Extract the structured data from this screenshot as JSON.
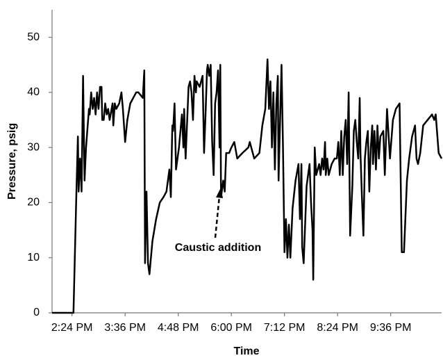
{
  "chart_data": {
    "type": "line",
    "x_label": "Time",
    "y_label": "Pressure, psig",
    "annotation": "Caustic addition",
    "color": "#000000",
    "x": [
      "1:57 PM",
      "2:26 PM",
      "2:30 PM",
      "2:32 PM",
      "2:33 PM",
      "2:35 PM",
      "2:37 PM",
      "2:39 PM",
      "2:41 PM",
      "2:43 PM",
      "2:47 PM",
      "2:48 PM",
      "2:50 PM",
      "2:52 PM",
      "2:54 PM",
      "2:56 PM",
      "2:58 PM",
      "3:00 PM",
      "3:02 PM",
      "3:04 PM",
      "3:05 PM",
      "3:07 PM",
      "3:09 PM",
      "3:11 PM",
      "3:13 PM",
      "3:15 PM",
      "3:19 PM",
      "3:20 PM",
      "3:22 PM",
      "3:24 PM",
      "3:28 PM",
      "3:31 PM",
      "3:33 PM",
      "3:36 PM",
      "3:39 PM",
      "3:43 PM",
      "3:51 PM",
      "3:54 PM",
      "4:00 PM",
      "4:02 PM",
      "4:03 PM",
      "4:05 PM",
      "4:07 PM",
      "4:09 PM",
      "4:13 PM",
      "4:18 PM",
      "4:23 PM",
      "4:28 PM",
      "4:32 PM",
      "4:36 PM",
      "4:38 PM",
      "4:40 PM",
      "4:41 PM",
      "4:43 PM",
      "4:45 PM",
      "4:49 PM",
      "4:53 PM",
      "4:55 PM",
      "4:56 PM",
      "4:58 PM",
      "5:02 PM",
      "5:04 PM",
      "5:06 PM",
      "5:08 PM",
      "5:10 PM",
      "5:12 PM",
      "5:13 PM",
      "5:17 PM",
      "5:21 PM",
      "5:23 PM",
      "5:25 PM",
      "5:27 PM",
      "5:28 PM",
      "5:30 PM",
      "5:32 PM",
      "5:34 PM",
      "5:36 PM",
      "5:38 PM",
      "5:40 PM",
      "5:42 PM",
      "5:44 PM",
      "5:45 PM",
      "5:46 PM",
      "5:47 PM",
      "5:49 PM",
      "5:51 PM",
      "5:53 PM",
      "5:57 PM",
      "6:00 PM",
      "6:04 PM",
      "6:08 PM",
      "6:15 PM",
      "6:23 PM",
      "6:25 PM",
      "6:31 PM",
      "6:38 PM",
      "6:42 PM",
      "6:46 PM",
      "6:49 PM",
      "6:51 PM",
      "6:53 PM",
      "6:55 PM",
      "6:57 PM",
      "6:59 PM",
      "7:01 PM",
      "7:03 PM",
      "7:04 PM",
      "7:08 PM",
      "7:10 PM",
      "7:12 PM",
      "7:14 PM",
      "7:16 PM",
      "7:18 PM",
      "7:20 PM",
      "7:23 PM",
      "7:27 PM",
      "7:31 PM",
      "7:33 PM",
      "7:35 PM",
      "7:36 PM",
      "7:38 PM",
      "7:42 PM",
      "7:46 PM",
      "7:48 PM",
      "7:50 PM",
      "7:51 PM",
      "7:53 PM",
      "7:55 PM",
      "7:59 PM",
      "8:01 PM",
      "8:03 PM",
      "8:05 PM",
      "8:07 PM",
      "8:08 PM",
      "8:10 PM",
      "8:12 PM",
      "8:16 PM",
      "8:20 PM",
      "8:23 PM",
      "8:25 PM",
      "8:27 PM",
      "8:29 PM",
      "8:31 PM",
      "8:33 PM",
      "8:35 PM",
      "8:37 PM",
      "8:39 PM",
      "8:41 PM",
      "8:44 PM",
      "8:46 PM",
      "8:48 PM",
      "8:50 PM",
      "8:52 PM",
      "8:54 PM",
      "8:55 PM",
      "8:57 PM",
      "8:59 PM",
      "9:01 PM",
      "9:03 PM",
      "9:05 PM",
      "9:07 PM",
      "9:09 PM",
      "9:11 PM",
      "9:12 PM",
      "9:14 PM",
      "9:16 PM",
      "9:18 PM",
      "9:20 PM",
      "9:22 PM",
      "9:26 PM",
      "9:28 PM",
      "9:31 PM",
      "9:35 PM",
      "9:39 PM",
      "9:43 PM",
      "9:48 PM",
      "9:51 PM",
      "9:54 PM",
      "9:58 PM",
      "10:01 PM",
      "10:05 PM",
      "10:09 PM",
      "10:11 PM",
      "10:13 PM",
      "10:16 PM",
      "10:20 PM",
      "10:26 PM",
      "10:32 PM",
      "10:35 PM",
      "10:37 PM",
      "10:41 PM",
      "10:45 PM"
    ],
    "values": [
      0,
      0,
      22,
      32,
      22,
      28,
      22,
      43,
      24,
      30,
      37,
      36,
      40,
      37,
      39,
      36,
      40,
      37,
      41,
      41,
      35,
      35,
      38,
      36,
      37,
      35,
      38,
      34,
      38,
      37,
      38,
      40,
      37,
      31,
      35,
      38,
      40,
      40,
      39,
      44,
      9,
      22,
      9,
      7,
      13,
      17,
      20,
      21,
      22,
      26,
      21,
      34,
      33,
      38,
      26,
      30,
      36,
      30,
      37,
      28,
      41,
      42,
      40,
      35,
      43,
      40,
      42,
      41,
      43,
      29,
      36,
      44,
      45,
      43,
      45,
      31,
      25,
      38,
      40,
      44,
      30,
      45,
      21,
      22,
      24,
      22,
      29,
      29,
      30,
      31,
      28,
      29,
      30,
      31,
      28,
      29,
      34,
      37,
      46,
      37,
      42,
      30,
      40,
      26,
      38,
      43,
      24,
      45,
      30,
      11,
      17,
      10,
      16,
      10,
      19,
      24,
      27,
      17,
      27,
      12,
      9,
      23,
      27,
      20,
      15,
      6,
      30,
      25,
      27,
      25,
      28,
      26,
      31,
      25,
      28,
      25,
      27,
      28,
      28,
      31,
      25,
      33,
      25,
      32,
      35,
      27,
      40,
      14,
      23,
      33,
      35,
      31,
      28,
      39,
      29,
      21,
      14,
      28,
      31,
      33,
      22,
      30,
      34,
      27,
      33,
      26,
      34,
      28,
      32,
      33,
      25,
      37,
      28,
      35,
      37,
      38,
      11,
      11,
      24,
      28,
      32,
      34,
      28,
      27,
      29,
      34,
      35,
      36,
      35,
      36,
      29,
      28
    ],
    "xlim": [
      "1:57 PM",
      "10:45 PM"
    ],
    "xticks": [
      "2:24 PM",
      "3:36 PM",
      "4:48 PM",
      "6:00 PM",
      "7:12 PM",
      "8:24 PM",
      "9:36 PM"
    ],
    "ylim": [
      0,
      55
    ],
    "yticks": [
      0,
      10,
      20,
      30,
      40,
      50
    ],
    "grid": false
  }
}
